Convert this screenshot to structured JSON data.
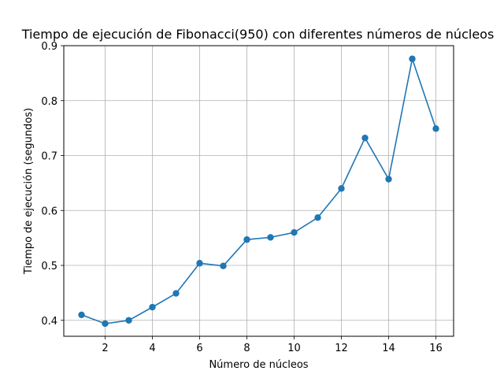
{
  "chart_data": {
    "type": "line",
    "title": "Tiempo de ejecución de Fibonacci(950) con diferentes números de núcleos",
    "xlabel": "Número de núcleos",
    "ylabel": "Tiempo de ejecución (segundos)",
    "x": [
      1,
      2,
      3,
      4,
      5,
      6,
      7,
      8,
      9,
      10,
      11,
      12,
      13,
      14,
      15,
      16
    ],
    "series": [
      {
        "values": [
          0.41,
          0.394,
          0.4,
          0.424,
          0.449,
          0.504,
          0.499,
          0.547,
          0.551,
          0.56,
          0.587,
          0.64,
          0.732,
          0.657,
          0.876,
          0.749
        ]
      }
    ],
    "xlim": [
      0.25,
      16.75
    ],
    "ylim": [
      0.371,
      0.9
    ],
    "xticks": [
      2,
      4,
      6,
      8,
      10,
      12,
      14,
      16
    ],
    "yticks": [
      0.4,
      0.5,
      0.6,
      0.7,
      0.8,
      0.9
    ],
    "ytick_labels": [
      "0.4",
      "0.5",
      "0.6",
      "0.7",
      "0.8",
      "0.9"
    ],
    "grid": true,
    "line_color": "#1f77b4",
    "marker": "circle"
  }
}
